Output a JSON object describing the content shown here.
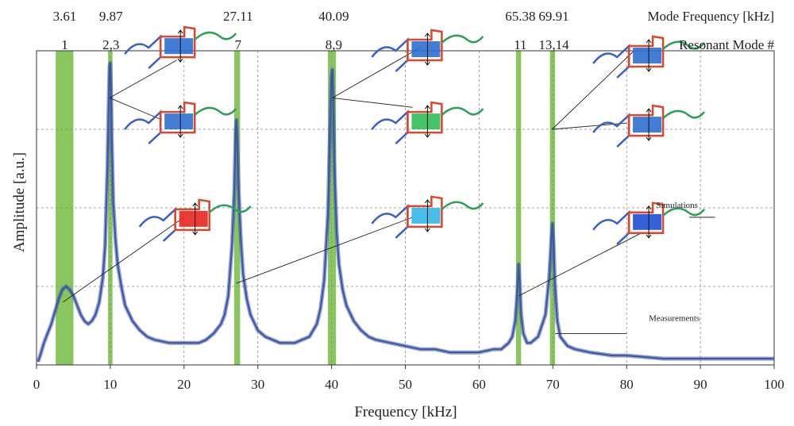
{
  "chart_data": {
    "type": "line",
    "xlabel": "Frequency [kHz]",
    "ylabel": "Amplitude [a.u.]",
    "xlim": [
      0,
      100
    ],
    "ylim": [
      0,
      1
    ],
    "grid": true,
    "x_ticks": [
      0,
      10,
      20,
      30,
      40,
      50,
      60,
      70,
      80,
      90,
      100
    ],
    "header_rows": [
      {
        "label": "Mode Frequency [kHz]",
        "entries": [
          {
            "x": 3.61,
            "text": "3.61"
          },
          {
            "x": 9.87,
            "text": "9.87"
          },
          {
            "x": 27.11,
            "text": "27.11"
          },
          {
            "x": 40.09,
            "text": "40.09"
          },
          {
            "x": 65.38,
            "text": "65.38"
          },
          {
            "x": 69.91,
            "text": "69.91"
          }
        ]
      },
      {
        "label": "Resonant Mode #",
        "entries": [
          {
            "x": 3.61,
            "text": "1"
          },
          {
            "x": 9.87,
            "text": "2,3"
          },
          {
            "x": 27.11,
            "text": "7"
          },
          {
            "x": 40.09,
            "text": "8,9"
          },
          {
            "x": 65.38,
            "text": "11"
          },
          {
            "x": 69.91,
            "text": "13,14"
          }
        ]
      }
    ],
    "mode_bands_khz": [
      [
        2.6,
        5.0
      ],
      [
        9.7,
        10.3
      ],
      [
        26.8,
        27.6
      ],
      [
        39.5,
        40.6
      ],
      [
        65.0,
        65.7
      ],
      [
        69.6,
        70.3
      ]
    ],
    "series": [
      {
        "name": "Measurements",
        "color": "#3a55a8",
        "x": [
          0.2,
          0.5,
          1,
          1.5,
          2,
          2.5,
          3,
          3.5,
          4,
          4.5,
          5,
          5.5,
          6,
          6.5,
          7,
          7.5,
          8,
          8.5,
          9,
          9.3,
          9.6,
          9.8,
          9.9,
          10.0,
          10.1,
          10.2,
          10.4,
          10.7,
          11,
          11.5,
          12,
          13,
          14,
          15,
          16,
          18,
          20,
          22,
          23,
          24,
          25,
          25.5,
          26,
          26.5,
          26.8,
          27.0,
          27.1,
          27.2,
          27.4,
          27.7,
          28,
          28.5,
          29,
          30,
          31,
          32,
          33,
          34,
          35,
          36,
          37,
          38,
          38.5,
          39,
          39.5,
          39.8,
          40.0,
          40.1,
          40.2,
          40.4,
          40.7,
          41,
          41.5,
          42,
          43,
          44,
          45,
          46,
          48,
          50,
          52,
          54,
          56,
          58,
          60,
          62,
          63,
          64,
          64.5,
          64.9,
          65.2,
          65.35,
          65.5,
          65.7,
          66,
          66.5,
          67,
          68,
          69,
          69.5,
          69.8,
          69.95,
          70.1,
          70.3,
          70.6,
          71,
          72,
          73,
          75,
          78,
          80,
          85,
          90,
          95,
          100
        ],
        "y": [
          0.01,
          0.03,
          0.07,
          0.1,
          0.13,
          0.17,
          0.21,
          0.24,
          0.25,
          0.24,
          0.22,
          0.19,
          0.16,
          0.14,
          0.13,
          0.14,
          0.16,
          0.2,
          0.28,
          0.38,
          0.62,
          0.85,
          0.95,
          0.96,
          0.88,
          0.72,
          0.52,
          0.4,
          0.32,
          0.25,
          0.19,
          0.14,
          0.11,
          0.09,
          0.08,
          0.07,
          0.07,
          0.07,
          0.08,
          0.1,
          0.13,
          0.16,
          0.22,
          0.38,
          0.55,
          0.74,
          0.78,
          0.72,
          0.56,
          0.4,
          0.29,
          0.21,
          0.16,
          0.11,
          0.09,
          0.08,
          0.07,
          0.07,
          0.07,
          0.08,
          0.09,
          0.13,
          0.18,
          0.27,
          0.48,
          0.75,
          0.92,
          0.94,
          0.86,
          0.62,
          0.42,
          0.32,
          0.24,
          0.19,
          0.14,
          0.11,
          0.09,
          0.08,
          0.07,
          0.06,
          0.05,
          0.05,
          0.04,
          0.04,
          0.04,
          0.05,
          0.05,
          0.07,
          0.09,
          0.14,
          0.24,
          0.32,
          0.26,
          0.16,
          0.1,
          0.07,
          0.07,
          0.09,
          0.16,
          0.28,
          0.4,
          0.45,
          0.38,
          0.25,
          0.14,
          0.09,
          0.06,
          0.05,
          0.04,
          0.03,
          0.03,
          0.02,
          0.02,
          0.02,
          0.02
        ]
      }
    ],
    "annotations": [
      {
        "text": "Simulations",
        "x": 84.0,
        "y": 0.49
      },
      {
        "text": "Measurements",
        "x": 83.0,
        "y": 0.13
      }
    ],
    "leader_lines": [
      {
        "from": [
          3.6,
          0.2
        ],
        "to": [
          20.0,
          0.47
        ]
      },
      {
        "from": [
          9.9,
          0.85
        ],
        "to": [
          19.0,
          0.97
        ]
      },
      {
        "from": [
          9.9,
          0.85
        ],
        "to": [
          17.0,
          0.78
        ]
      },
      {
        "from": [
          27.1,
          0.26
        ],
        "to": [
          51.0,
          0.47
        ]
      },
      {
        "from": [
          40.1,
          0.85
        ],
        "to": [
          52.0,
          1.01
        ]
      },
      {
        "from": [
          40.1,
          0.85
        ],
        "to": [
          51.0,
          0.82
        ]
      },
      {
        "from": [
          65.4,
          0.22
        ],
        "to": [
          82.0,
          0.42
        ]
      },
      {
        "from": [
          69.9,
          0.75
        ],
        "to": [
          81.0,
          1.0
        ]
      },
      {
        "from": [
          69.9,
          0.75
        ],
        "to": [
          80.0,
          0.77
        ]
      },
      {
        "from": [
          70.3,
          0.1
        ],
        "to": [
          80.0,
          0.1
        ]
      },
      {
        "from": [
          88.5,
          0.47
        ],
        "to": [
          92.0,
          0.47
        ]
      }
    ],
    "insets": [
      {
        "name": "mode-1-shape",
        "x": 21.5,
        "y": 0.47,
        "fill": "#e8261f"
      },
      {
        "name": "mode-2-shape",
        "x": 19.5,
        "y": 1.02,
        "fill": "#2f6fd0"
      },
      {
        "name": "mode-3-shape",
        "x": 19.5,
        "y": 0.78,
        "fill": "#2f6fd0"
      },
      {
        "name": "mode-7-shape",
        "x": 53.0,
        "y": 0.48,
        "fill": "#33b6e8"
      },
      {
        "name": "mode-8-shape",
        "x": 53.0,
        "y": 1.01,
        "fill": "#2f6fd0"
      },
      {
        "name": "mode-9-shape",
        "x": 53.0,
        "y": 0.78,
        "fill": "#2dbf5a"
      },
      {
        "name": "mode-11-shape",
        "x": 83.0,
        "y": 0.46,
        "fill": "#1f4fd6"
      },
      {
        "name": "mode-13-shape",
        "x": 83.0,
        "y": 0.99,
        "fill": "#2f6fd0"
      },
      {
        "name": "mode-14-shape",
        "x": 83.0,
        "y": 0.77,
        "fill": "#2f6fd0"
      }
    ],
    "band_color": "#7cc04b"
  }
}
